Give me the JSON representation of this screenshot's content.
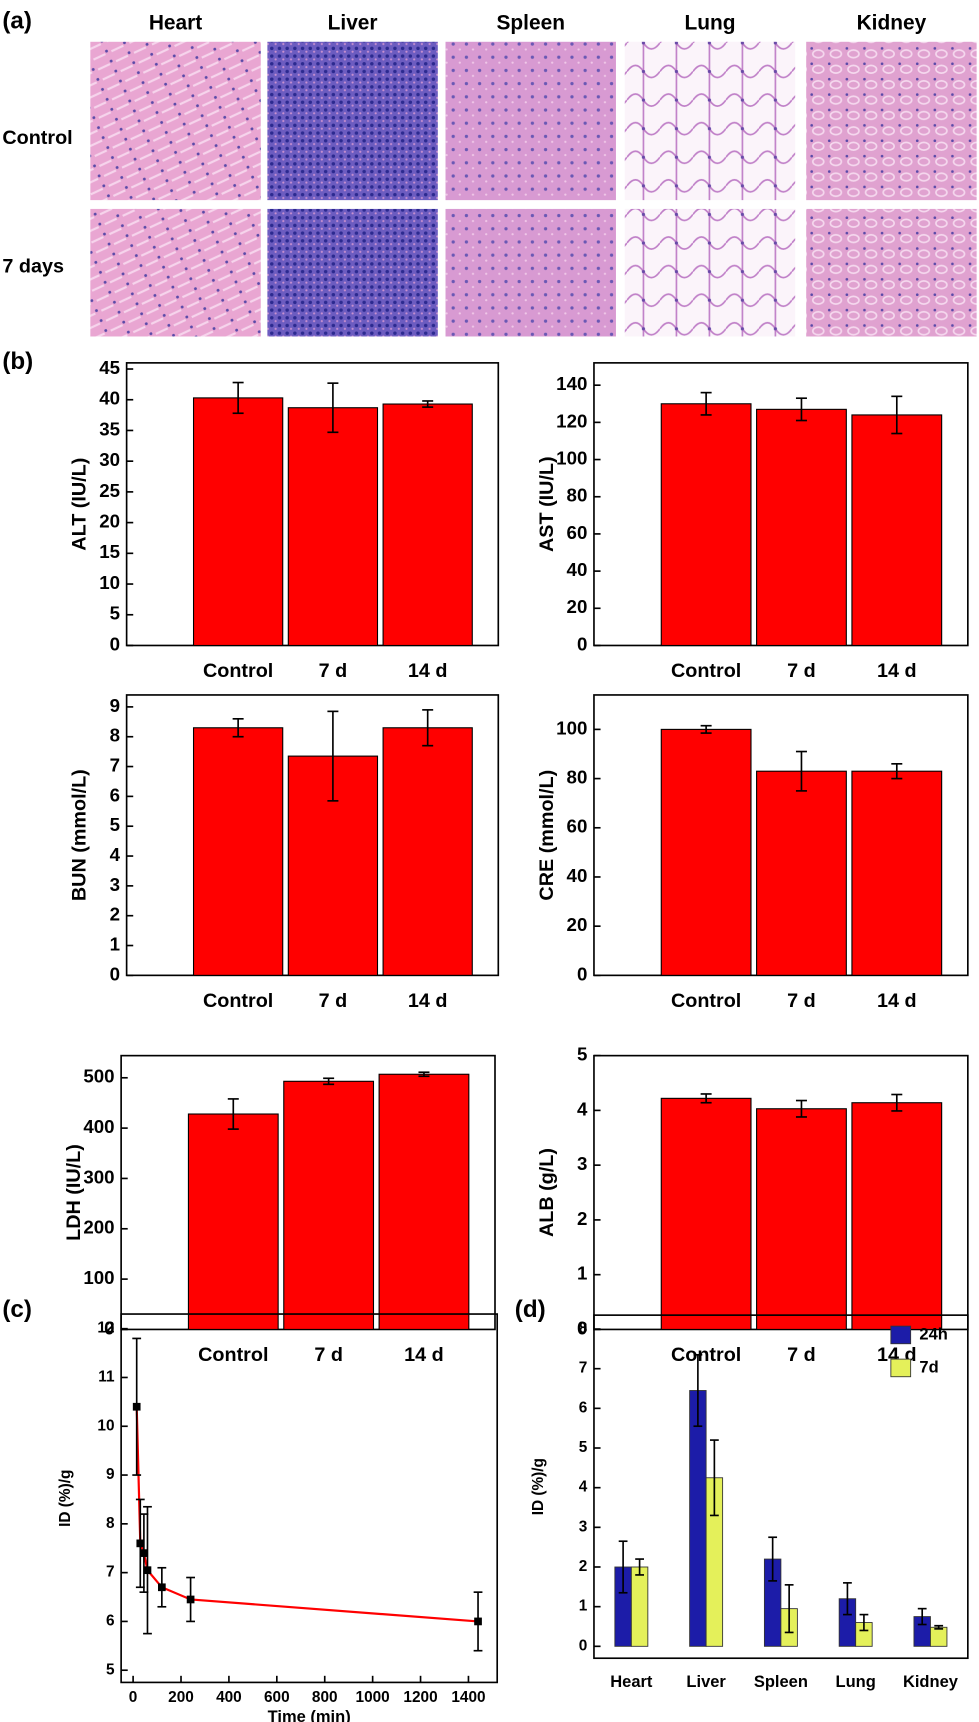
{
  "panel_labels": [
    "(a)",
    "(b)",
    "(c)",
    "(d)"
  ],
  "histology": {
    "organs": [
      "Heart",
      "Liver",
      "Spleen",
      "Lung",
      "Kidney"
    ],
    "rows": [
      "Control",
      "7 days"
    ]
  },
  "chart_data": [
    {
      "type": "bar",
      "y_label": "ALT (IU/L)",
      "categories": [
        "Control",
        "7 d",
        "14 d"
      ],
      "values": [
        40.3,
        38.7,
        39.3
      ],
      "errors": [
        2.5,
        4,
        0.5
      ],
      "color": "#ff0000",
      "ylim": [
        0,
        46
      ],
      "yticks": [
        0,
        5,
        10,
        15,
        20,
        25,
        30,
        35,
        40,
        45
      ]
    },
    {
      "type": "bar",
      "y_label": "AST (IU/L)",
      "categories": [
        "Control",
        "7 d",
        "14 d"
      ],
      "values": [
        130,
        127,
        124
      ],
      "errors": [
        6,
        6,
        10
      ],
      "color": "#ff0000",
      "ylim": [
        0,
        152
      ],
      "yticks": [
        0,
        20,
        40,
        60,
        80,
        100,
        120,
        140
      ]
    },
    {
      "type": "bar",
      "y_label": "BUN (mmol/L)",
      "categories": [
        "Control",
        "7 d",
        "14 d"
      ],
      "values": [
        8.3,
        7.35,
        8.3
      ],
      "errors": [
        0.3,
        1.5,
        0.6
      ],
      "color": "#ff0000",
      "ylim": [
        0,
        9.4
      ],
      "yticks": [
        0,
        1,
        2,
        3,
        4,
        5,
        6,
        7,
        8,
        9
      ]
    },
    {
      "type": "bar",
      "y_label": "CRE (mmol/L)",
      "categories": [
        "Control",
        "7 d",
        "14 d"
      ],
      "values": [
        100,
        83,
        83
      ],
      "errors": [
        1.5,
        8,
        3
      ],
      "color": "#ff0000",
      "ylim": [
        0,
        114
      ],
      "yticks": [
        0,
        20,
        40,
        60,
        80,
        100
      ]
    },
    {
      "type": "bar",
      "y_label": "LDH (IU/L)",
      "categories": [
        "Control",
        "7 d",
        "14 d"
      ],
      "values": [
        428,
        493,
        507
      ],
      "errors": [
        30,
        6,
        4
      ],
      "color": "#ff0000",
      "ylim": [
        0,
        544
      ],
      "yticks": [
        0,
        100,
        200,
        300,
        400,
        500
      ]
    },
    {
      "type": "bar",
      "y_label": "ALB (g/L)",
      "categories": [
        "Control",
        "7 d",
        "14 d"
      ],
      "values": [
        4.22,
        4.03,
        4.14
      ],
      "errors": [
        0.08,
        0.15,
        0.15
      ],
      "color": "#ff0000",
      "ylim": [
        0,
        5
      ],
      "yticks": [
        0,
        1,
        2,
        3,
        4,
        5
      ]
    },
    {
      "type": "line",
      "x_label": "Time (min)",
      "y_label": "ID (%)/g",
      "x": [
        15,
        30,
        45,
        60,
        120,
        240,
        1440
      ],
      "values": [
        10.4,
        7.6,
        7.4,
        7.05,
        6.7,
        6.45,
        6.0
      ],
      "errors": [
        1.4,
        0.9,
        0.8,
        1.3,
        0.4,
        0.45,
        0.6
      ],
      "color": "#ff0000",
      "marker_color": "#000000",
      "xlim": [
        -50,
        1520
      ],
      "xticks": [
        0,
        200,
        400,
        600,
        800,
        1000,
        1200,
        1400
      ],
      "ylim": [
        4.75,
        12.3
      ],
      "yticks": [
        5,
        6,
        7,
        8,
        9,
        10,
        11,
        12
      ]
    },
    {
      "type": "grouped_bar",
      "y_label": "ID (%)/g",
      "categories": [
        "Heart",
        "Liver",
        "Spleen",
        "Lung",
        "Kidney"
      ],
      "series": [
        {
          "name": "24h",
          "color": "#1c1ca8",
          "values": [
            2.0,
            6.45,
            2.2,
            1.2,
            0.75
          ],
          "errors": [
            0.65,
            0.9,
            0.55,
            0.4,
            0.2
          ]
        },
        {
          "name": "7d",
          "color": "#e4f05a",
          "values": [
            2.0,
            4.25,
            0.95,
            0.6,
            0.48
          ],
          "errors": [
            0.2,
            0.95,
            0.6,
            0.2,
            0.04
          ]
        }
      ],
      "legend": "upper right",
      "ylim": [
        -0.3,
        8.35
      ],
      "yticks": [
        0,
        1,
        2,
        3,
        4,
        5,
        6,
        7,
        8
      ]
    }
  ]
}
